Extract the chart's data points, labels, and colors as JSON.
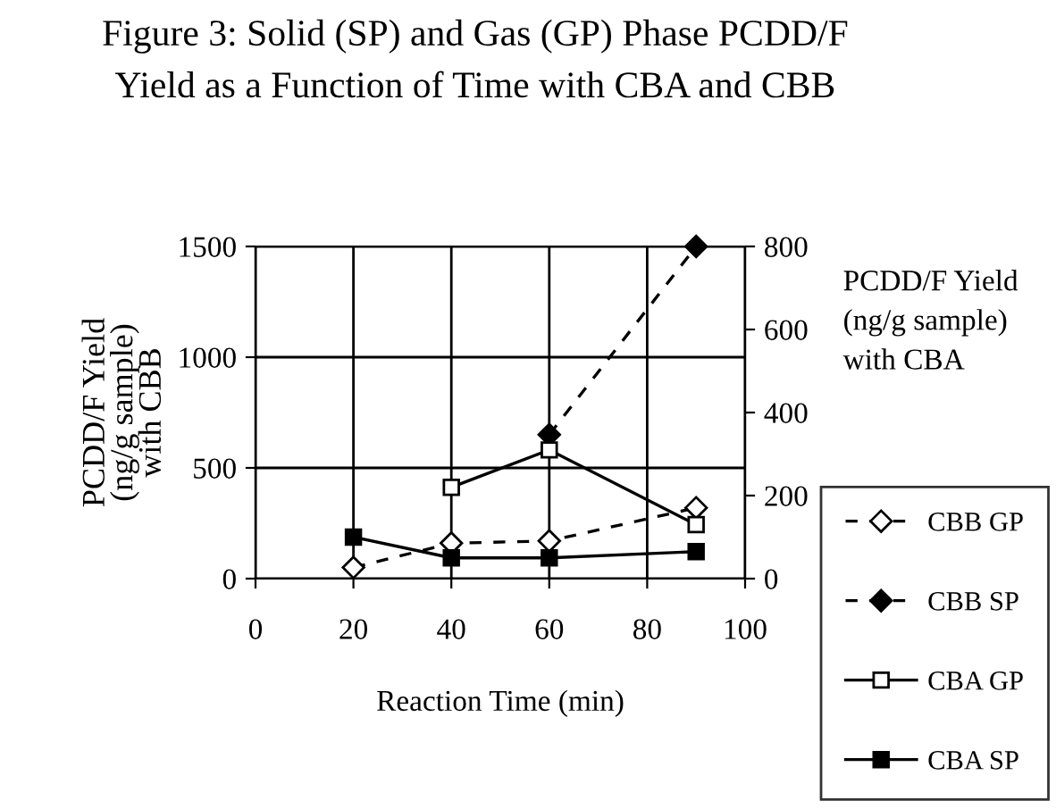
{
  "chart_data": {
    "type": "line",
    "title": "Figure 3: Solid (SP) and Gas (GP) Phase PCDD/F\nYield as a Function of Time with CBA and CBB",
    "xlabel": "Reaction Time (min)",
    "ylabel": "PCDD/F Yield\n(ng/g sample)\nwith CBB",
    "y2label": "PCDD/F Yield\n(ng/g sample)\nwith CBA",
    "x": [
      20,
      40,
      60,
      90
    ],
    "series": [
      {
        "name": "CBB GP",
        "color": "#000000",
        "values": [
          50,
          160,
          170,
          320
        ],
        "marker": "diamond",
        "line_style": "dashed"
      },
      {
        "name": "CBB SP",
        "color": "#000000",
        "values": [
          null,
          null,
          650,
          1500
        ],
        "marker": "diamond",
        "line_style": "dashed"
      },
      {
        "name": "CBA GP",
        "color": "#000000",
        "values": [
          null,
          220,
          310,
          130
        ],
        "marker": "square",
        "line_style": "solid",
        "axis": "y2"
      },
      {
        "name": "CBA SP",
        "color": "#000000",
        "values": [
          100,
          50,
          50,
          65
        ],
        "marker": "square",
        "line_style": "solid",
        "axis": "y2"
      }
    ],
    "xlim": [
      0,
      100
    ],
    "xticks": [
      0,
      20,
      40,
      60,
      80,
      100
    ],
    "ylim": [
      0,
      1500
    ],
    "yticks": [
      0,
      500,
      1000,
      1500
    ],
    "y2lim": [
      0,
      800
    ],
    "y2ticks": [
      0,
      200,
      400,
      600,
      800
    ],
    "grid": true,
    "legend": "right"
  }
}
